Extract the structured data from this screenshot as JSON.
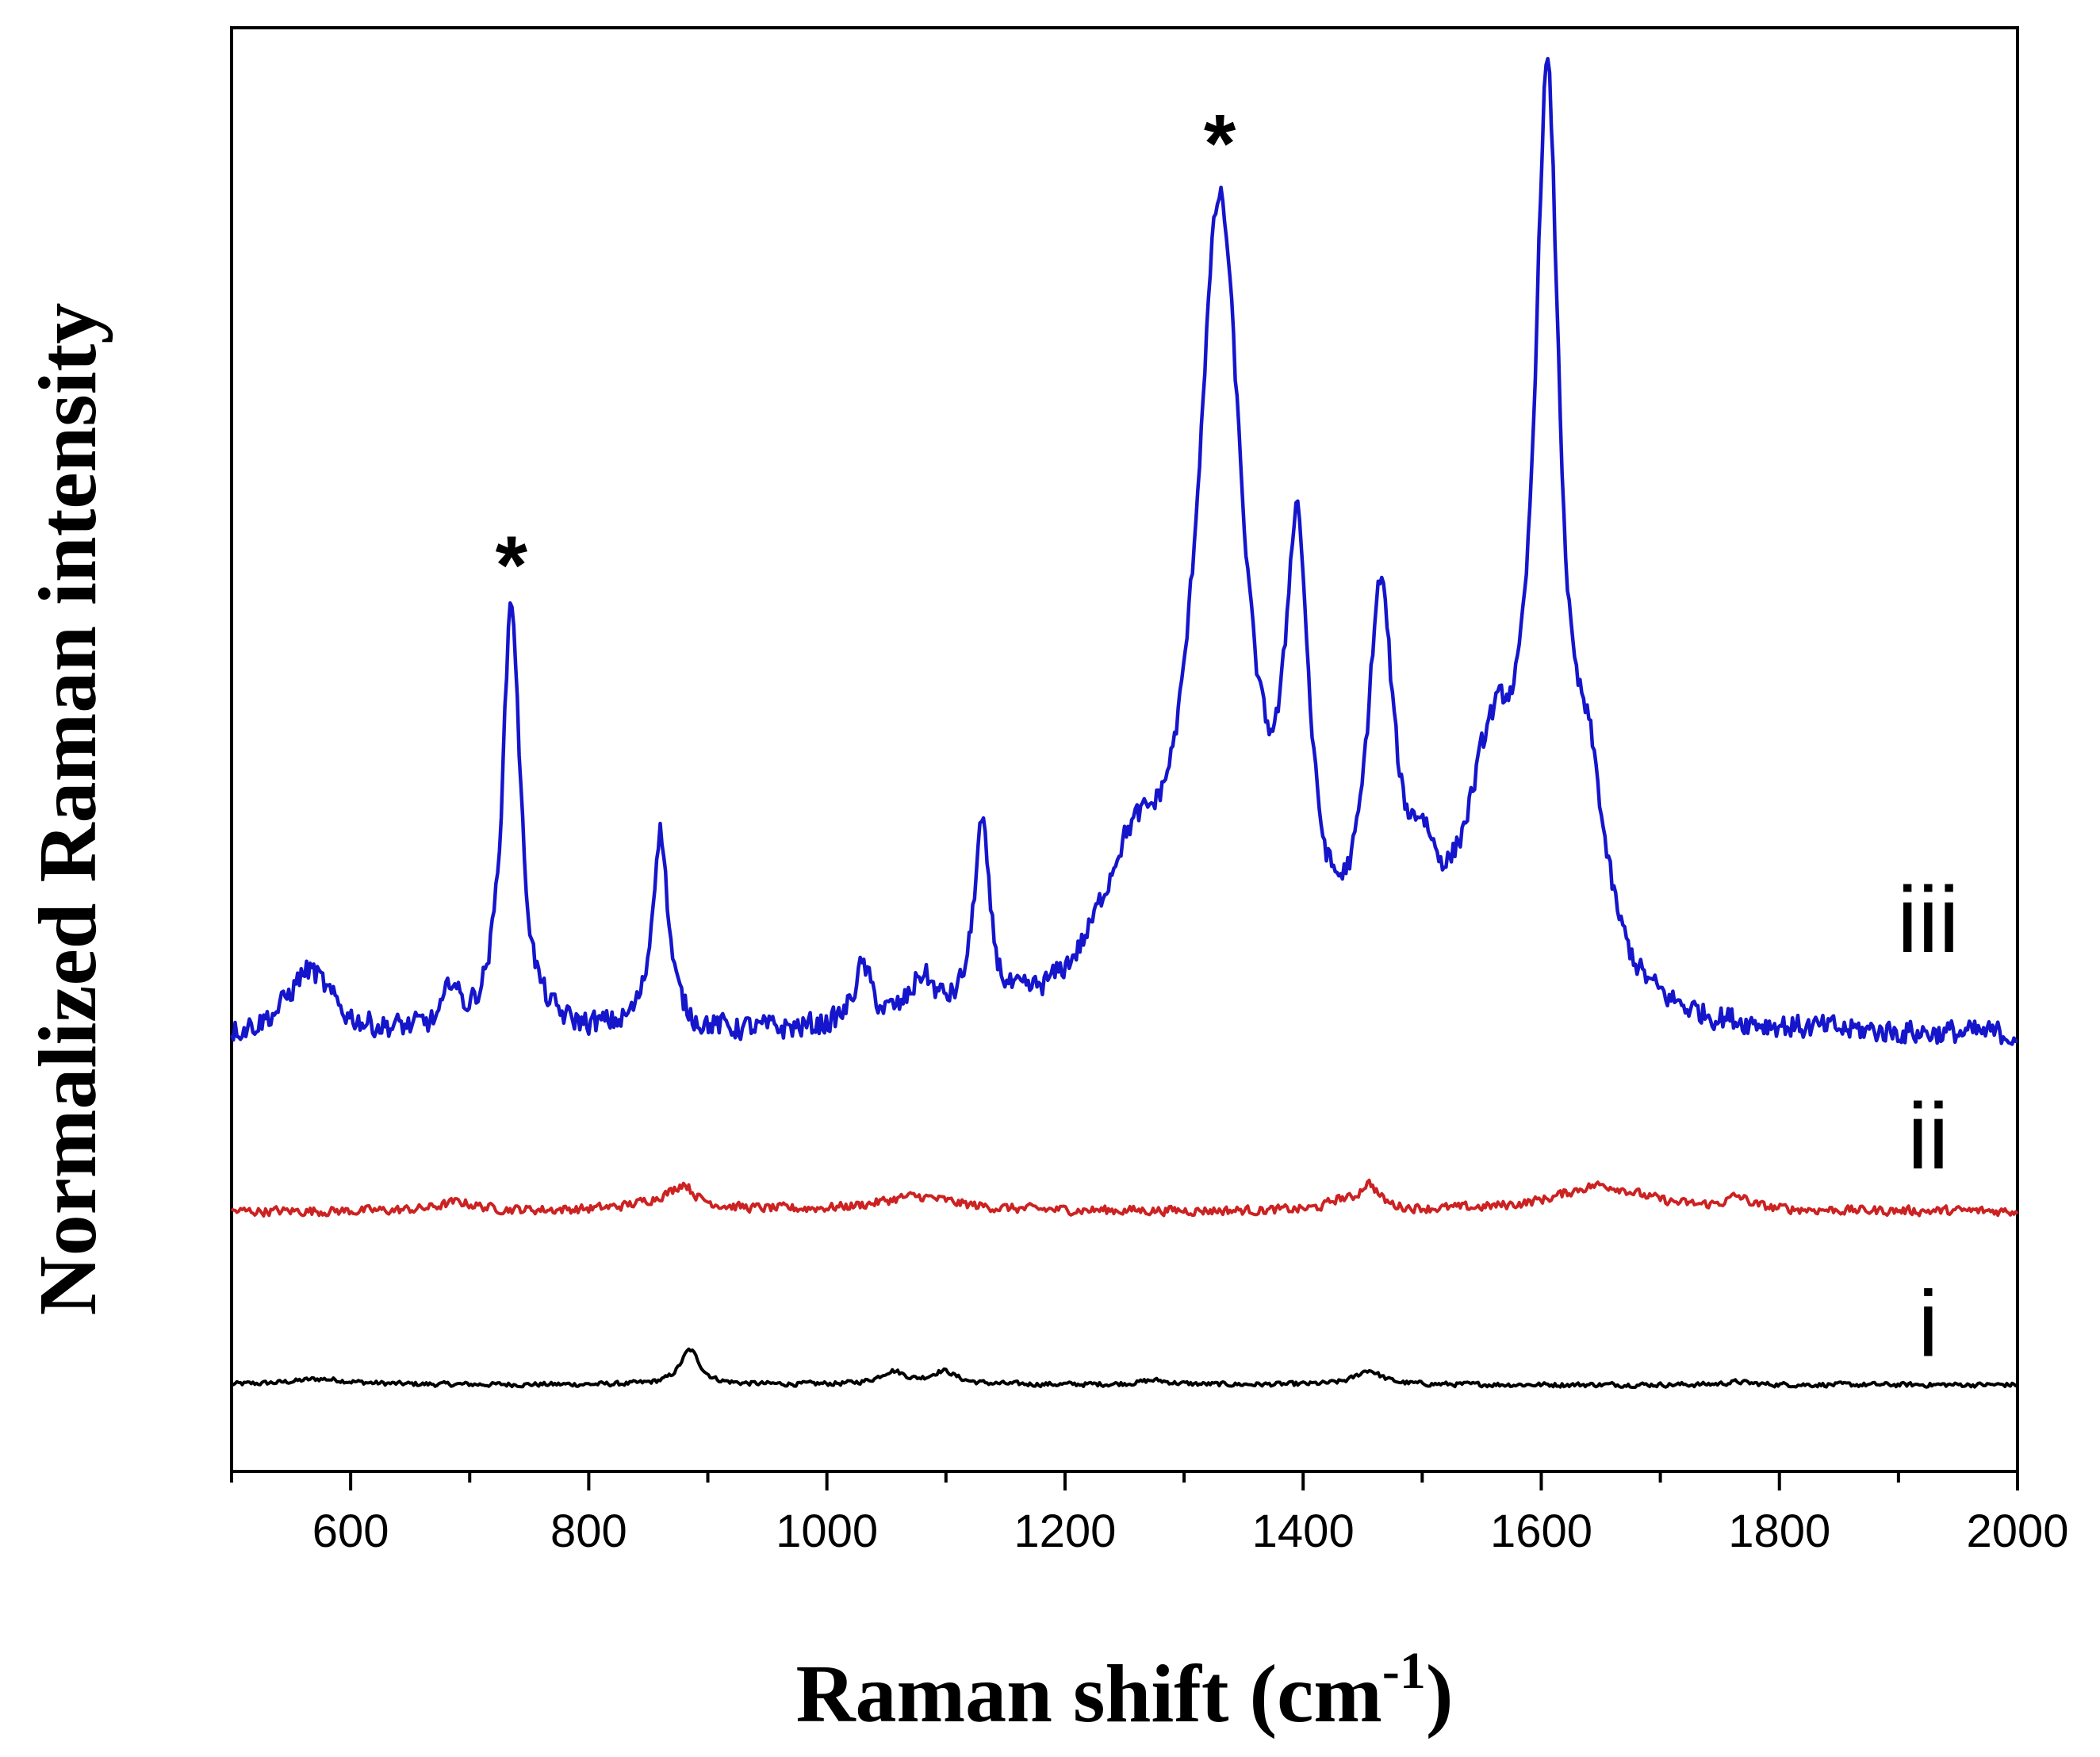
{
  "chart_data": {
    "type": "line",
    "title": "",
    "xlabel": "Raman shift (cm",
    "xlabel_sup": "-1",
    "xlabel_close": ")",
    "ylabel": "Normalized Raman intensity",
    "xlim": [
      500,
      2000
    ],
    "ylim": [
      0,
      1.0
    ],
    "x_ticks": [
      600,
      800,
      1000,
      1200,
      1400,
      1600,
      1800,
      2000
    ],
    "x_tick_labels": [
      "600",
      "800",
      "1000",
      "1200",
      "1400",
      "1600",
      "1800",
      "2000"
    ],
    "grid": false,
    "legend": "none",
    "annotations": [
      {
        "text": "*",
        "x": 735,
        "y": 0.633
      },
      {
        "text": "*",
        "x": 1330,
        "y": 0.925
      }
    ],
    "series": [
      {
        "label": "i",
        "color": "#000000",
        "baseline": 0.06,
        "noise": 0.0015,
        "peaks": [
          [
            575,
            0.004,
            30
          ],
          [
            885,
            0.024,
            10
          ],
          [
            1055,
            0.009,
            13
          ],
          [
            1098,
            0.009,
            13
          ],
          [
            1275,
            0.003,
            15
          ],
          [
            1455,
            0.01,
            13
          ],
          [
            1765,
            0.002,
            12
          ]
        ]
      },
      {
        "label": "ii",
        "color": "#cc2222",
        "baseline": 0.18,
        "noise": 0.003,
        "peaks": [
          [
            690,
            0.006,
            20
          ],
          [
            870,
            0.01,
            30
          ],
          [
            880,
            0.01,
            8
          ],
          [
            1075,
            0.01,
            40
          ],
          [
            1430,
            0.006,
            10
          ],
          [
            1455,
            0.018,
            10
          ],
          [
            1650,
            0.018,
            45
          ],
          [
            1765,
            0.008,
            12
          ]
        ]
      },
      {
        "label": "iii",
        "color": "#1515cc",
        "baseline": 0.3,
        "noise": 0.008,
        "peaks": [
          [
            565,
            0.045,
            22
          ],
          [
            685,
            0.03,
            6
          ],
          [
            735,
            0.3,
            9
          ],
          [
            860,
            0.14,
            8
          ],
          [
            1030,
            0.04,
            9
          ],
          [
            1080,
            0.03,
            12
          ],
          [
            1130,
            0.13,
            8
          ],
          [
            1255,
            0.09,
            35
          ],
          [
            1330,
            0.55,
            24
          ],
          [
            1395,
            0.28,
            12
          ],
          [
            1465,
            0.26,
            14
          ],
          [
            1500,
            0.06,
            15
          ],
          [
            1560,
            0.16,
            30
          ],
          [
            1605,
            0.59,
            13
          ],
          [
            1640,
            0.12,
            18
          ]
        ]
      }
    ]
  }
}
